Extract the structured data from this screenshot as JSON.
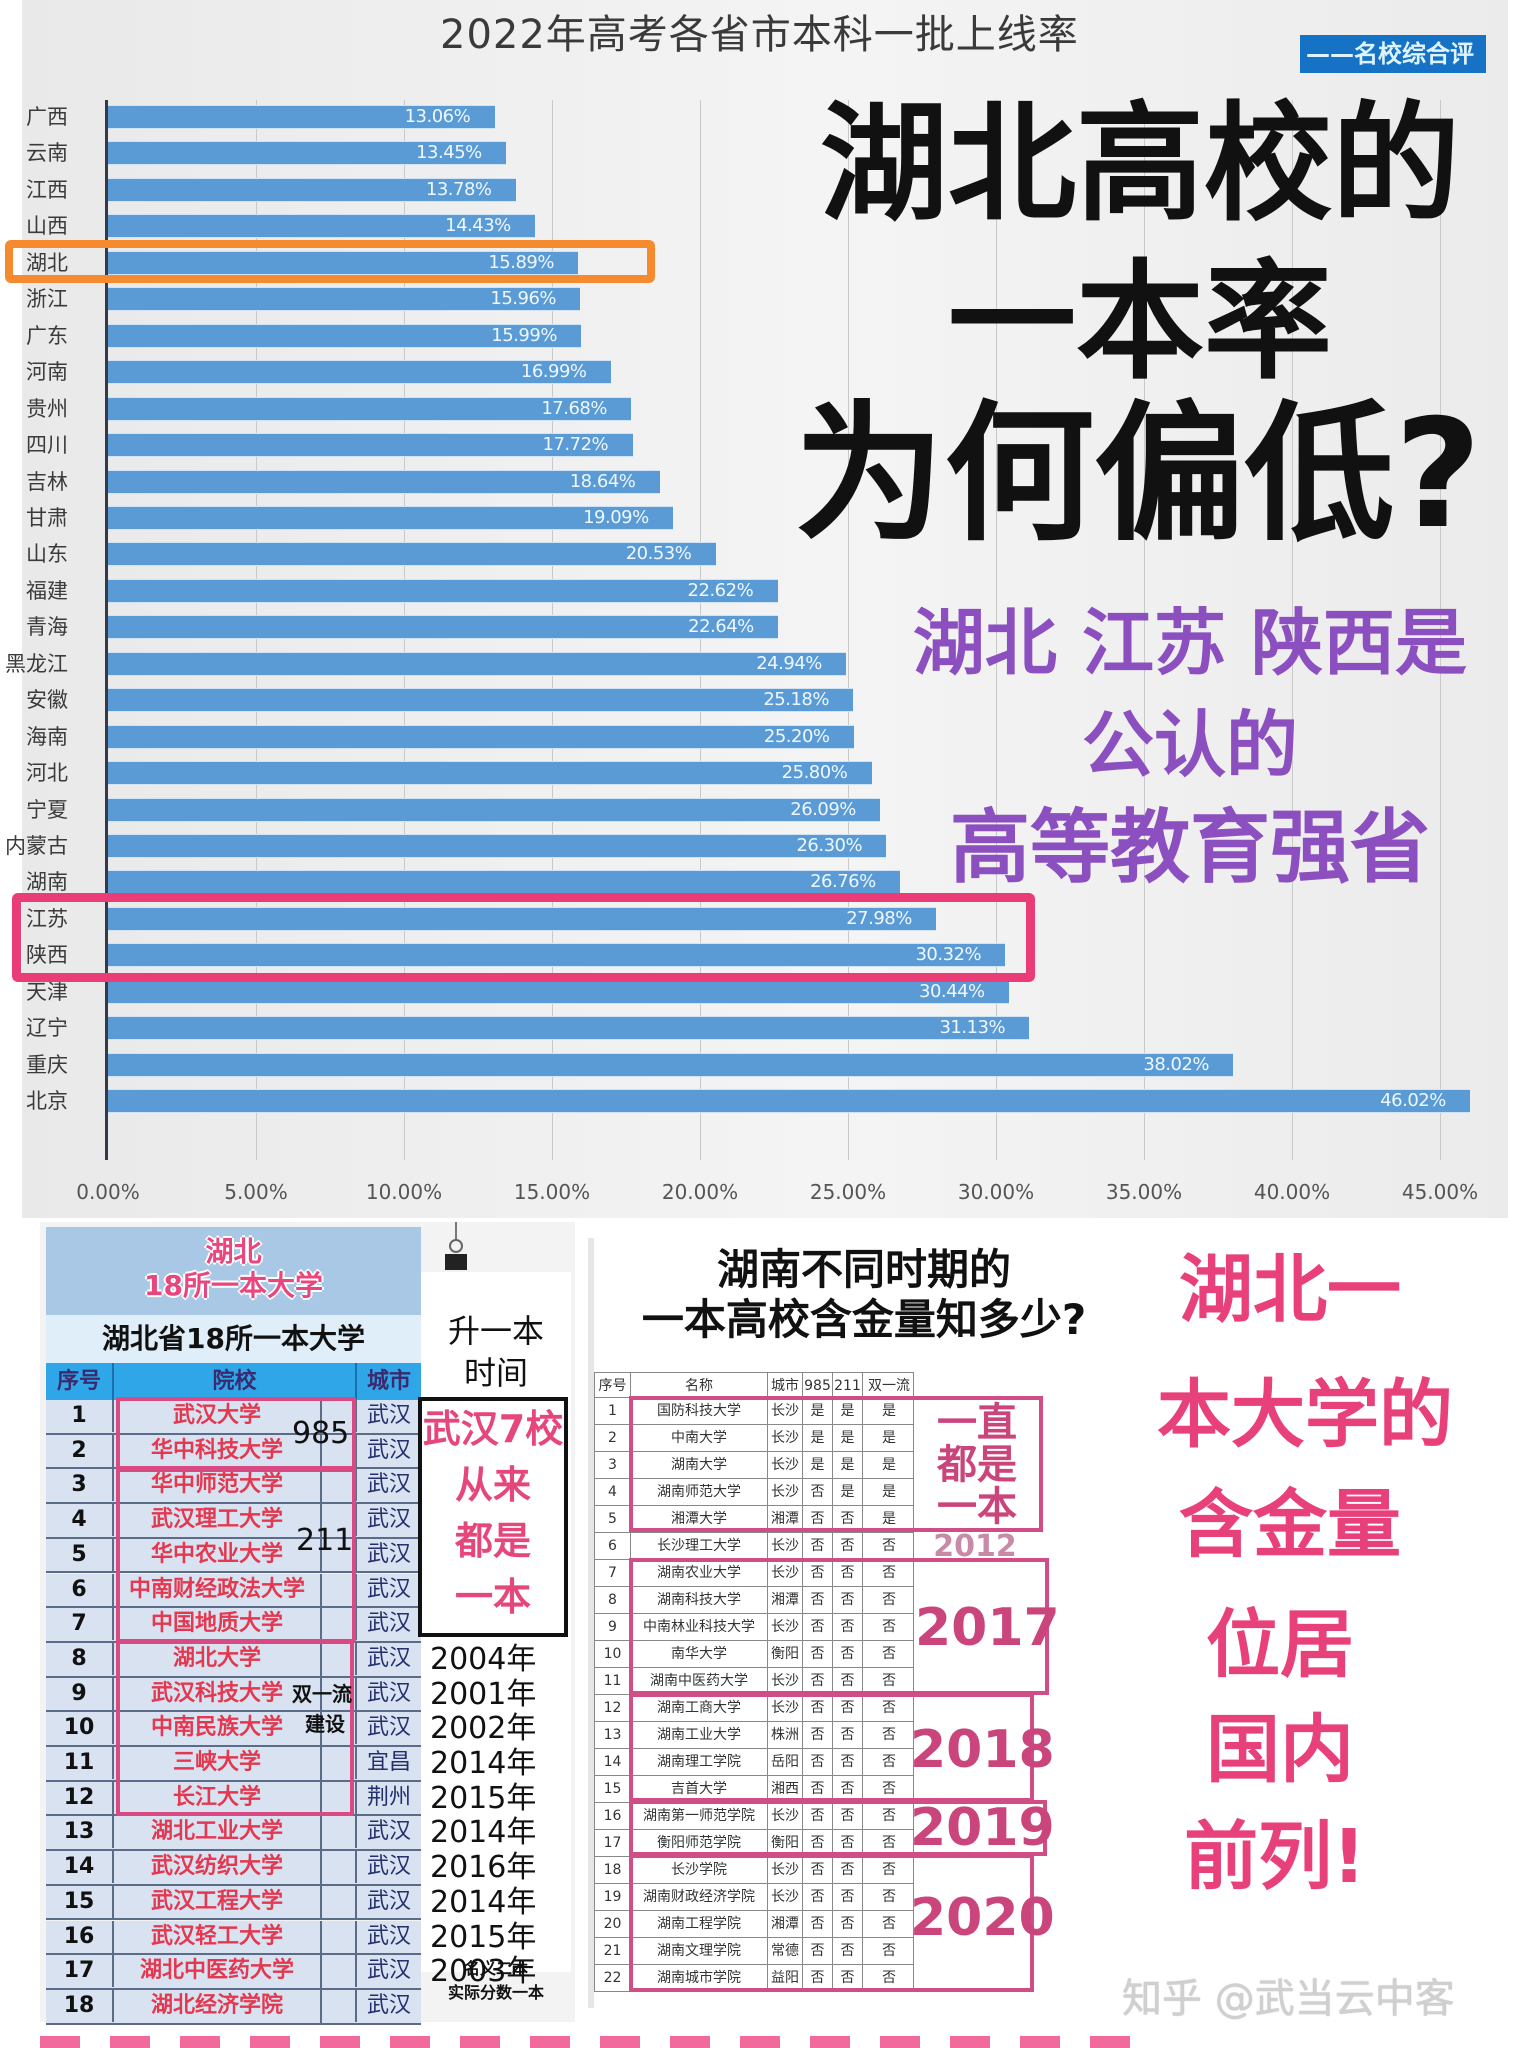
{
  "chart_data": {
    "type": "bar",
    "orientation": "horizontal",
    "title": "2022年高考各省市本科一批上线率",
    "source_badge": "——名校综合评",
    "categories": [
      "广西",
      "云南",
      "江西",
      "山西",
      "湖北",
      "浙江",
      "广东",
      "河南",
      "贵州",
      "四川",
      "吉林",
      "甘肃",
      "山东",
      "福建",
      "青海",
      "黑龙江",
      "安徽",
      "海南",
      "河北",
      "宁夏",
      "内蒙古",
      "湖南",
      "江苏",
      "陕西",
      "天津",
      "辽宁",
      "重庆",
      "北京"
    ],
    "values": [
      13.06,
      13.45,
      13.78,
      14.43,
      15.89,
      15.96,
      15.99,
      16.99,
      17.68,
      17.72,
      18.64,
      19.09,
      20.53,
      22.62,
      22.64,
      24.94,
      25.18,
      25.2,
      25.8,
      26.09,
      26.3,
      26.76,
      27.98,
      30.32,
      30.44,
      31.13,
      38.02,
      46.02
    ],
    "value_labels": [
      "13.06%",
      "13.45%",
      "13.78%",
      "14.43%",
      "15.89%",
      "15.96%",
      "15.99%",
      "16.99%",
      "17.68%",
      "17.72%",
      "18.64%",
      "19.09%",
      "20.53%",
      "22.62%",
      "22.64%",
      "24.94%",
      "25.18%",
      "25.20%",
      "25.80%",
      "26.09%",
      "26.30%",
      "26.76%",
      "27.98%",
      "30.32%",
      "30.44%",
      "31.13%",
      "38.02%",
      "46.02%"
    ],
    "x_ticks": [
      "0.00%",
      "5.00%",
      "10.00%",
      "15.00%",
      "20.00%",
      "25.00%",
      "30.00%",
      "35.00%",
      "40.00%",
      "45.00%"
    ],
    "xlim": [
      0,
      47
    ],
    "xlabel": "",
    "ylabel": "",
    "grid": true,
    "bar_color": "#5b9bd5",
    "highlights": [
      {
        "categories": [
          "湖北"
        ],
        "color": "#f58a2e"
      },
      {
        "categories": [
          "江苏",
          "陕西"
        ],
        "color": "#ea3d77"
      }
    ]
  },
  "headline": {
    "line1": "湖北高校的",
    "line2": "一本率",
    "line3": "为何偏低?"
  },
  "subheadline": {
    "line1": "湖北 江苏 陕西是",
    "line2": "公认的",
    "line3": "高等教育强省",
    "color": "#8b4fc0"
  },
  "hubei_table": {
    "banner_line1": "湖北",
    "banner_line2": "18所一本大学",
    "title": "湖北省18所一本大学",
    "headers": [
      "序号",
      "院校",
      "城市"
    ],
    "side_header_line1": "升一本",
    "side_header_line2": "时间",
    "side_box": [
      "武汉7校",
      "从来",
      "都是",
      "一本"
    ],
    "tag_985": "985",
    "tag_211": "211",
    "tag_syl_1": "双一流",
    "tag_syl_2": "建设",
    "note_line1": "名义二本",
    "note_line2": "实际分数一本",
    "rows": [
      {
        "seq": "1",
        "name": "武汉大学",
        "city": "武汉",
        "year": ""
      },
      {
        "seq": "2",
        "name": "华中科技大学",
        "city": "武汉",
        "year": ""
      },
      {
        "seq": "3",
        "name": "华中师范大学",
        "city": "武汉",
        "year": ""
      },
      {
        "seq": "4",
        "name": "武汉理工大学",
        "city": "武汉",
        "year": ""
      },
      {
        "seq": "5",
        "name": "华中农业大学",
        "city": "武汉",
        "year": ""
      },
      {
        "seq": "6",
        "name": "中南财经政法大学",
        "city": "武汉",
        "year": ""
      },
      {
        "seq": "7",
        "name": "中国地质大学",
        "city": "武汉",
        "year": ""
      },
      {
        "seq": "8",
        "name": "湖北大学",
        "city": "武汉",
        "year": "2004年"
      },
      {
        "seq": "9",
        "name": "武汉科技大学",
        "city": "武汉",
        "year": "2001年"
      },
      {
        "seq": "10",
        "name": "中南民族大学",
        "city": "武汉",
        "year": "2002年"
      },
      {
        "seq": "11",
        "name": "三峡大学",
        "city": "宜昌",
        "year": "2014年"
      },
      {
        "seq": "12",
        "name": "长江大学",
        "city": "荆州",
        "year": "2015年"
      },
      {
        "seq": "13",
        "name": "湖北工业大学",
        "city": "武汉",
        "year": "2014年"
      },
      {
        "seq": "14",
        "name": "武汉纺织大学",
        "city": "武汉",
        "year": "2016年"
      },
      {
        "seq": "15",
        "name": "武汉工程大学",
        "city": "武汉",
        "year": "2014年"
      },
      {
        "seq": "16",
        "name": "武汉轻工大学",
        "city": "武汉",
        "year": "2015年"
      },
      {
        "seq": "17",
        "name": "湖北中医药大学",
        "city": "武汉",
        "year": "2003年"
      },
      {
        "seq": "18",
        "name": "湖北经济学院",
        "city": "武汉",
        "year": ""
      }
    ]
  },
  "hunan_table": {
    "title_line1": "湖南不同时期的",
    "title_line2": "一本高校含金量知多少?",
    "headers": [
      "序号",
      "名称",
      "城市",
      "985",
      "211",
      "双一流"
    ],
    "annotations": {
      "always": [
        "一直",
        "都是",
        "一本"
      ],
      "y2012": "2012",
      "y2017": "2017",
      "y2018": "2018",
      "y2019": "2019",
      "y2020": "2020"
    },
    "rows": [
      [
        "1",
        "国防科技大学",
        "长沙",
        "是",
        "是",
        "是"
      ],
      [
        "2",
        "中南大学",
        "长沙",
        "是",
        "是",
        "是"
      ],
      [
        "3",
        "湖南大学",
        "长沙",
        "是",
        "是",
        "是"
      ],
      [
        "4",
        "湖南师范大学",
        "长沙",
        "否",
        "是",
        "是"
      ],
      [
        "5",
        "湘潭大学",
        "湘潭",
        "否",
        "否",
        "是"
      ],
      [
        "6",
        "长沙理工大学",
        "长沙",
        "否",
        "否",
        "否"
      ],
      [
        "7",
        "湖南农业大学",
        "长沙",
        "否",
        "否",
        "否"
      ],
      [
        "8",
        "湖南科技大学",
        "湘潭",
        "否",
        "否",
        "否"
      ],
      [
        "9",
        "中南林业科技大学",
        "长沙",
        "否",
        "否",
        "否"
      ],
      [
        "10",
        "南华大学",
        "衡阳",
        "否",
        "否",
        "否"
      ],
      [
        "11",
        "湖南中医药大学",
        "长沙",
        "否",
        "否",
        "否"
      ],
      [
        "12",
        "湖南工商大学",
        "长沙",
        "否",
        "否",
        "否"
      ],
      [
        "13",
        "湖南工业大学",
        "株洲",
        "否",
        "否",
        "否"
      ],
      [
        "14",
        "湖南理工学院",
        "岳阳",
        "否",
        "否",
        "否"
      ],
      [
        "15",
        "吉首大学",
        "湘西",
        "否",
        "否",
        "否"
      ],
      [
        "16",
        "湖南第一师范学院",
        "长沙",
        "否",
        "否",
        "否"
      ],
      [
        "17",
        "衡阳师范学院",
        "衡阳",
        "否",
        "否",
        "否"
      ],
      [
        "18",
        "长沙学院",
        "长沙",
        "否",
        "否",
        "否"
      ],
      [
        "19",
        "湖南财政经济学院",
        "长沙",
        "否",
        "否",
        "否"
      ],
      [
        "20",
        "湖南工程学院",
        "湘潭",
        "否",
        "否",
        "否"
      ],
      [
        "21",
        "湖南文理学院",
        "常德",
        "否",
        "否",
        "否"
      ],
      [
        "22",
        "湖南城市学院",
        "益阳",
        "否",
        "否",
        "否"
      ]
    ]
  },
  "right_text": {
    "lines": [
      "湖北一",
      "本大学的",
      "含金量",
      "位居",
      "国内",
      "前列!"
    ],
    "color": "#e8407a"
  },
  "watermark": "知乎 @武当云中客"
}
